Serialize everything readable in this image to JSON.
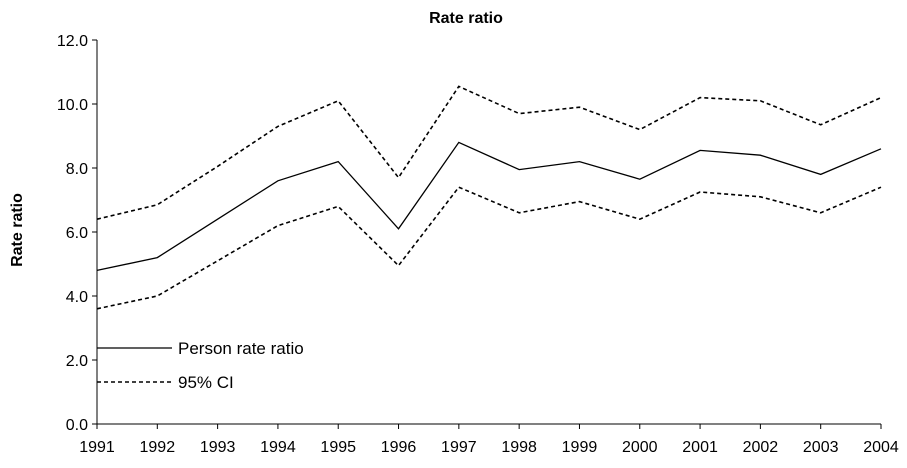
{
  "chart_data": {
    "type": "line",
    "title": "Rate ratio",
    "xlabel": "",
    "ylabel": "Rate ratio",
    "categories": [
      "1991",
      "1992",
      "1993",
      "1994",
      "1995",
      "1996",
      "1997",
      "1998",
      "1999",
      "2000",
      "2001",
      "2002",
      "2003",
      "2004"
    ],
    "ylim": [
      0,
      12
    ],
    "yticks": [
      "0.0",
      "2.0",
      "4.0",
      "6.0",
      "8.0",
      "10.0",
      "12.0"
    ],
    "grid": false,
    "legend_position": "bottom-left",
    "series": [
      {
        "name": "Person rate ratio",
        "style": "solid",
        "color": "#000000",
        "values": [
          4.8,
          5.2,
          6.4,
          7.6,
          8.2,
          6.1,
          8.8,
          7.95,
          8.2,
          7.65,
          8.55,
          8.4,
          7.8,
          8.6
        ]
      },
      {
        "name": "95% CI",
        "style": "dashed",
        "color": "#000000",
        "values": [
          6.4,
          6.85,
          8.05,
          9.3,
          10.1,
          7.7,
          10.55,
          9.7,
          9.9,
          9.2,
          10.2,
          10.1,
          9.35,
          10.2
        ]
      },
      {
        "name": "",
        "style": "dashed",
        "color": "#000000",
        "values": [
          3.6,
          4.0,
          5.1,
          6.2,
          6.8,
          4.95,
          7.4,
          6.6,
          6.95,
          6.4,
          7.25,
          7.1,
          6.6,
          7.4
        ]
      }
    ]
  }
}
